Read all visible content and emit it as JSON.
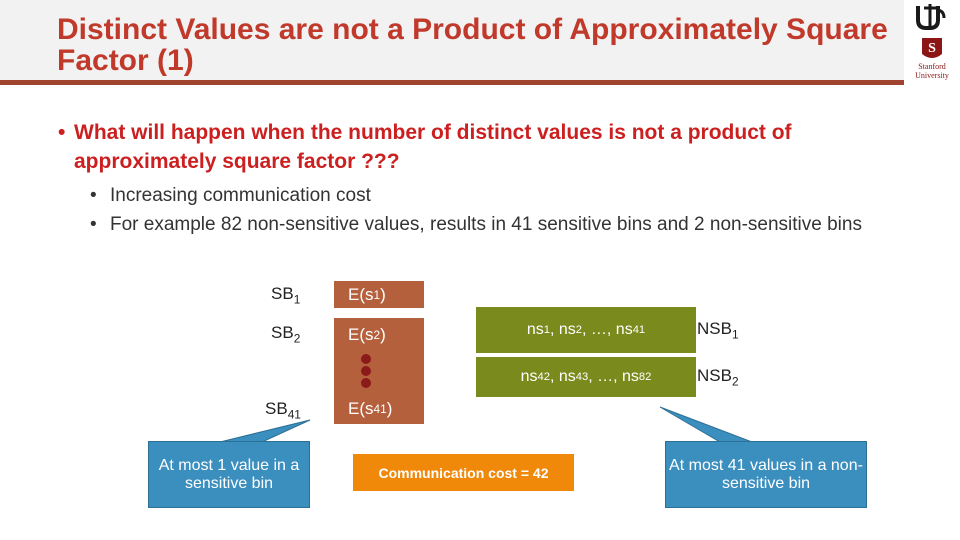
{
  "slide": {
    "title": "Distinct Values are not a Product of Approximately Square Factor (1)",
    "logo": {
      "icon": "uci-stanford-logo",
      "text": "Stanford University"
    }
  },
  "content": {
    "question": "What will happen when the number of distinct values is not a product of approximately square factor ???",
    "points": [
      "Increasing communication cost",
      "For example 82 non-sensitive values, results in 41 sensitive bins and 2 non-sensitive bins"
    ]
  },
  "diagram": {
    "sensitive_bins": [
      {
        "label": "SB",
        "label_sub": "1",
        "enc": "E(s",
        "enc_sub": "1",
        "enc_close": ")"
      },
      {
        "label": "SB",
        "label_sub": "2",
        "enc": "E(s",
        "enc_sub": "2",
        "enc_close": ")"
      },
      {
        "label": "SB",
        "label_sub": "41",
        "enc": "E(s",
        "enc_sub": "41",
        "enc_close": ")"
      }
    ],
    "nonsensitive_bins": [
      {
        "content_parts": [
          "ns",
          "1",
          ", ns",
          "2",
          ", …, ns",
          "41"
        ],
        "label": "NSB",
        "label_sub": "1"
      },
      {
        "content_parts": [
          "ns",
          "42",
          ", ns",
          "43",
          ", …, ns",
          "82"
        ],
        "label": "NSB",
        "label_sub": "2"
      }
    ],
    "communication_cost": "Communication cost = 42",
    "callout_left": "At most 1 value in a sensitive bin",
    "callout_right": "At most 41 values in a non-sensitive bin"
  },
  "colors": {
    "title": "#c0392b",
    "enc_box": "#b5603d",
    "nsb_box": "#7a8a1d",
    "callout": "#3b8fbf",
    "cost_box": "#f0890a"
  }
}
